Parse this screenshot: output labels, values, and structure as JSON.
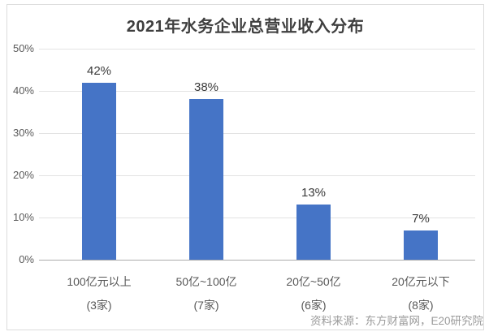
{
  "chart_data": {
    "type": "bar",
    "title": "2021年水务企业总营业收入分布",
    "categories": [
      "100亿元以上",
      "50亿~100亿",
      "20亿~50亿",
      "20亿元以下"
    ],
    "category_counts": [
      "(3家)",
      "(7家)",
      "(6家)",
      "(8家)"
    ],
    "values": [
      42,
      38,
      13,
      7
    ],
    "value_labels": [
      "42%",
      "38%",
      "13%",
      "7%"
    ],
    "yticks": [
      "0%",
      "10%",
      "20%",
      "30%",
      "40%",
      "50%"
    ],
    "ylim": [
      0,
      50
    ],
    "ytick_interval": 10,
    "grid": true,
    "legend": "none",
    "bar_color": "#4574C6",
    "source": "资料来源：东方财富网，E20研究院"
  },
  "colors": {
    "bar": "#4574C6",
    "gridline": "#e3e3e3",
    "axis_line": "#ababab",
    "title_text": "#3f3f3f",
    "tick_text": "#595959",
    "value_label_text": "#3a3a3a",
    "source_text": "#9b9b9b",
    "border": "#dcdcdc",
    "background": "#ffffff"
  }
}
